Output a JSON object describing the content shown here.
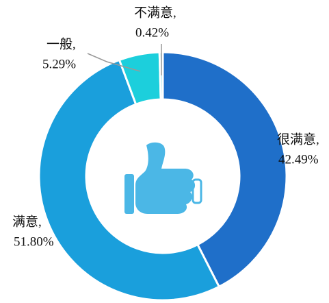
{
  "chart_data": {
    "type": "donut",
    "categories": [
      "很满意,",
      "满意,",
      "一般,",
      "不满意,"
    ],
    "values": [
      42.49,
      51.8,
      5.29,
      0.42
    ],
    "value_labels": [
      "42.49%",
      "51.80%",
      "5.29%",
      "0.42%"
    ],
    "colors": [
      "#1f6fc9",
      "#1a9fdc",
      "#1ccfdc",
      "#8fd8e6"
    ],
    "legend": false
  }
}
